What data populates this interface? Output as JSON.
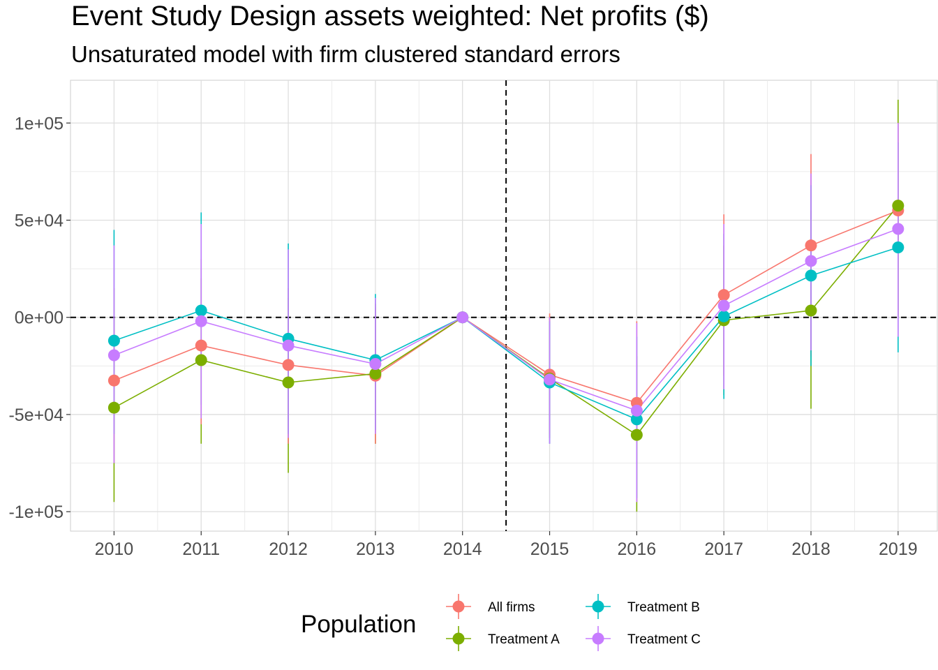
{
  "chart_data": {
    "type": "line",
    "title": "Event Study Design assets weighted: Net profits  ($)",
    "subtitle": "Unsaturated model with firm clustered standard errors",
    "x": [
      2010,
      2011,
      2012,
      2013,
      2014,
      2015,
      2016,
      2017,
      2018,
      2019
    ],
    "ylim": [
      -110000,
      122000
    ],
    "xlim": [
      2009.5,
      2019.45
    ],
    "y_ticks": [
      {
        "value": 100000,
        "label": "1e+05"
      },
      {
        "value": 50000,
        "label": "5e+04"
      },
      {
        "value": 0,
        "label": "0e+00"
      },
      {
        "value": -50000,
        "label": "-5e+04"
      },
      {
        "value": -100000,
        "label": "-1e+05"
      }
    ],
    "x_ticks": [
      "2010",
      "2011",
      "2012",
      "2013",
      "2014",
      "2015",
      "2016",
      "2017",
      "2018",
      "2019"
    ],
    "reference_lines": {
      "hline_y": 0,
      "vline_x": 2014.5
    },
    "grid": true,
    "legend": {
      "title": "Population",
      "position": "bottom"
    },
    "series": [
      {
        "name": "All firms",
        "color": "#F8766D",
        "values": [
          -32500,
          -14500,
          -24500,
          -30000,
          0,
          -29500,
          -44000,
          11500,
          37000,
          55000
        ],
        "lower": [
          -75000,
          -55000,
          -65000,
          -65000,
          0,
          -60000,
          -95000,
          -30000,
          -20000,
          0
        ],
        "upper": [
          15000,
          30000,
          15000,
          5000,
          0,
          2000,
          -2000,
          53000,
          84000,
          100000
        ]
      },
      {
        "name": "Treatment A",
        "color": "#7CAE00",
        "values": [
          -46500,
          -22000,
          -33500,
          -29000,
          0,
          -31500,
          -60500,
          -1500,
          3500,
          57500
        ],
        "lower": [
          -95000,
          -65000,
          -80000,
          -65000,
          0,
          -62000,
          -100000,
          -40000,
          -47000,
          0
        ],
        "upper": [
          0,
          20000,
          10000,
          7000,
          0,
          0,
          -20000,
          37000,
          55000,
          112000
        ]
      },
      {
        "name": "Treatment B",
        "color": "#00BFC4",
        "values": [
          -12000,
          3500,
          -11000,
          -22000,
          0,
          -33500,
          -52500,
          500,
          21500,
          36000
        ],
        "lower": [
          -60000,
          -45000,
          -60000,
          -58000,
          0,
          -65000,
          -93000,
          -42000,
          -25000,
          -18000
        ],
        "upper": [
          45000,
          54000,
          38000,
          12000,
          0,
          -2000,
          -10000,
          43000,
          68000,
          90000
        ]
      },
      {
        "name": "Treatment C",
        "color": "#C77CFF",
        "values": [
          -19500,
          -2000,
          -14500,
          -24000,
          0,
          -32000,
          -48000,
          6000,
          29000,
          45500
        ],
        "lower": [
          -75000,
          -52000,
          -62000,
          -60000,
          0,
          -65000,
          -95000,
          -37000,
          -17000,
          -10000
        ],
        "upper": [
          37000,
          48000,
          35000,
          10000,
          0,
          0,
          -3000,
          48000,
          74000,
          100000
        ]
      }
    ]
  }
}
